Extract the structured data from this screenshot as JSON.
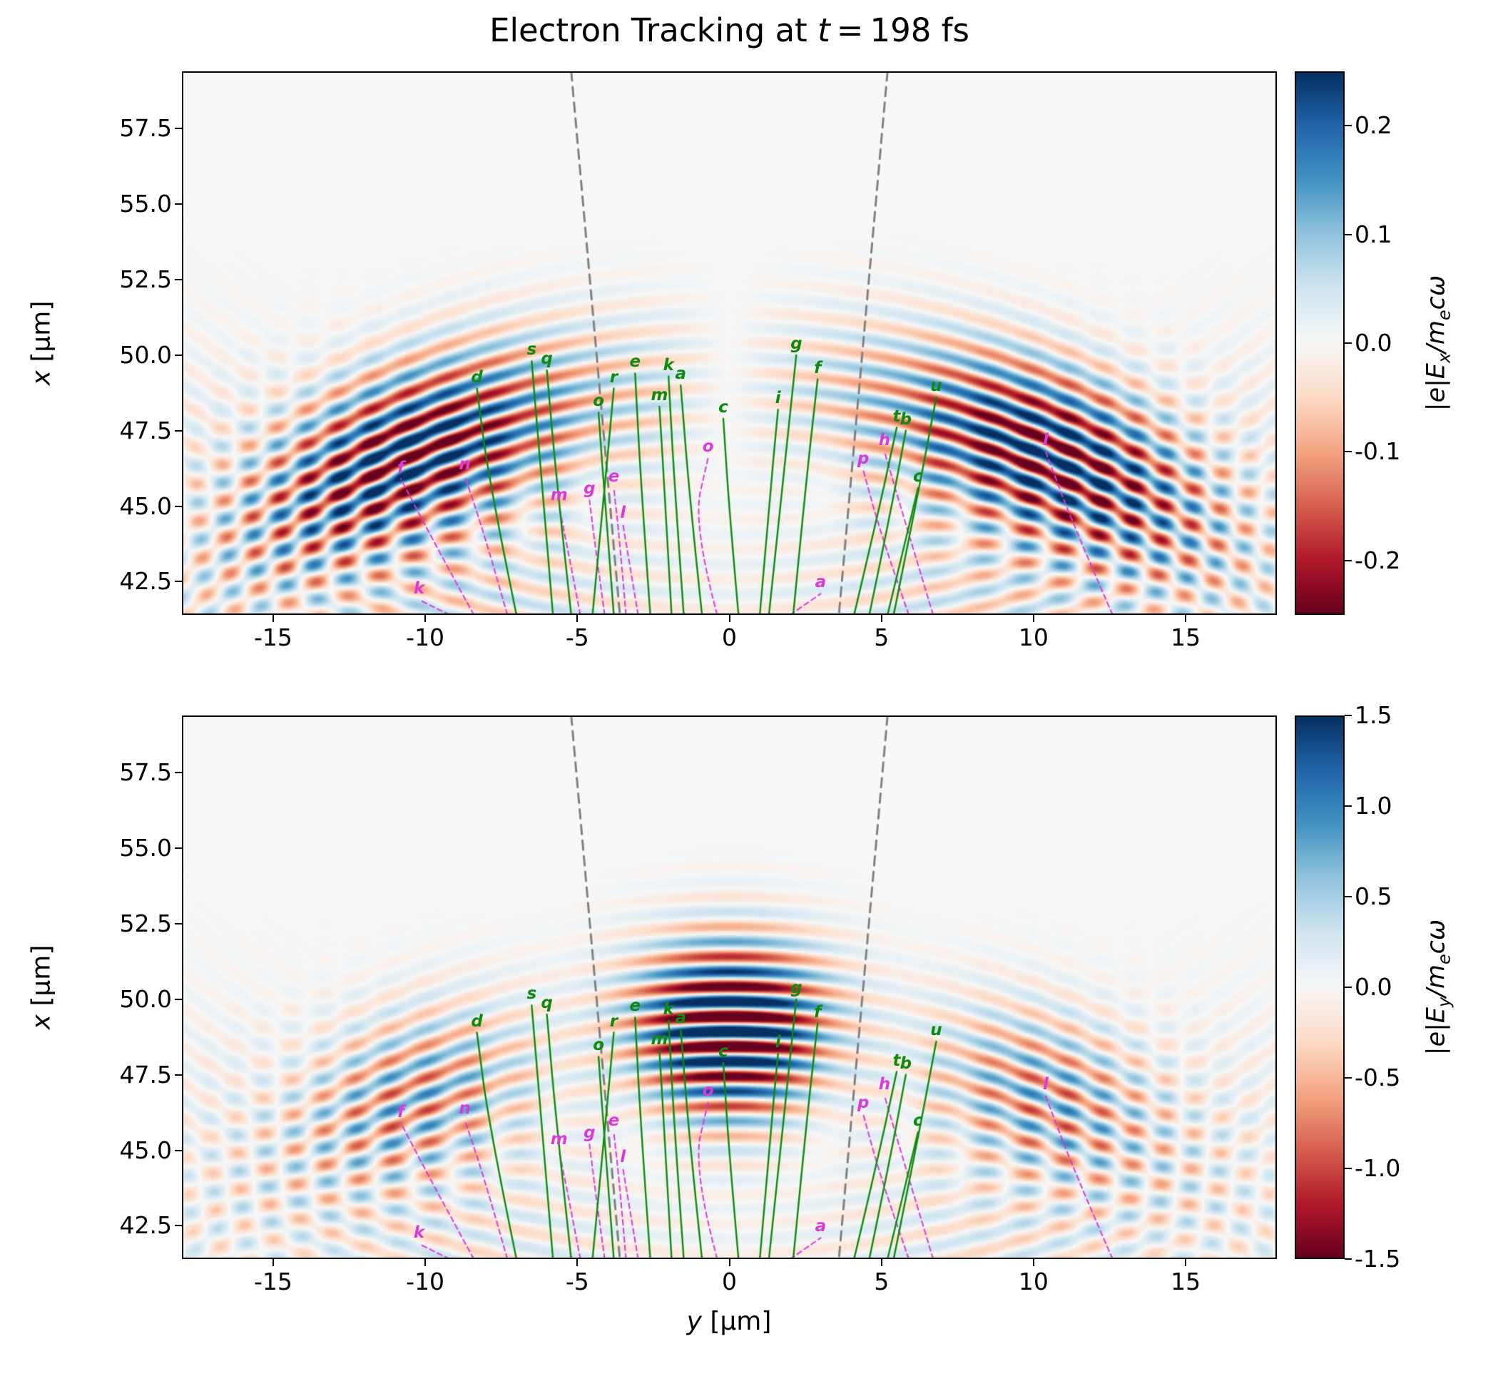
{
  "title": {
    "pre": "Electron Tracking at ",
    "var": "t",
    "post": " = 198 fs",
    "full": "Electron Tracking at t = 198 fs"
  },
  "axes": {
    "y_min": -18,
    "y_max": 18,
    "x_min": 41.4,
    "x_max": 59.4,
    "ylabel_var": "x",
    "ylabel_unit": " [μm]",
    "xlabel_var": "y",
    "xlabel_unit": " [μm]",
    "grid": false
  },
  "colors": {
    "green": "#0e8a0e",
    "magenta": "#d93ad9",
    "cone": "#808080",
    "axis": "#000000",
    "background": "#ffffff"
  },
  "colormap_stops": [
    "#67001f",
    "#b2182b",
    "#d6604d",
    "#f4a582",
    "#fddbc7",
    "#f7f7f7",
    "#d1e5f0",
    "#92c5de",
    "#4393c3",
    "#2166ac",
    "#053061"
  ],
  "chart_data": [
    {
      "type": "heatmap",
      "name": "Ex-field-panel",
      "title": "Electron Tracking at t = 198 fs",
      "xlabel": "y [μm]",
      "ylabel": "x [μm]",
      "x_range": [
        -18,
        18
      ],
      "y_range": [
        41.4,
        59.4
      ],
      "x_ticks": {
        "values": [
          -15,
          -10,
          -5,
          0,
          5,
          10,
          15
        ],
        "labels": [
          "-15",
          "-10",
          "-5",
          "0",
          "5",
          "10",
          "15"
        ]
      },
      "y_ticks": {
        "values": [
          57.5,
          55.0,
          52.5,
          50.0,
          47.5,
          45.0,
          42.5
        ],
        "labels": [
          "57.5",
          "55.0",
          "52.5",
          "50.0",
          "47.5",
          "45.0",
          "42.5"
        ]
      },
      "colorbar": {
        "label": "|e|Ex/mecω",
        "label_parts": {
          "pre": "|e|E",
          "sub": "x",
          "mid": "/m",
          "sub2": "e",
          "post": "cω"
        },
        "vmin": -0.25,
        "vmax": 0.25,
        "ticks": {
          "values": [
            0.2,
            0.1,
            0.0,
            -0.1,
            -0.2
          ],
          "labels": [
            "0.2",
            "0.1",
            "0.0",
            "-0.1",
            "-0.2"
          ]
        }
      },
      "field": {
        "mode": "odd",
        "vmax": 0.25,
        "amp": 0.3,
        "focus_x": 24,
        "r0": 25,
        "sigma_r": 2.8,
        "k": 6.3,
        "null_width": 0.12,
        "lobe_theta": 0.42,
        "lobe_width": 0.22,
        "center_amp": 0.3,
        "center_width": 0.18,
        "wing_amp": 0.12,
        "wing_theta": 0.78,
        "wing_width": 0.25,
        "mirror_x": 73,
        "mirror_amp": 0.08,
        "mirror_theta": 0.35,
        "mirror_theta_width": 0.3,
        "mirror_r0": 32,
        "mirror_sigma_r": 4.5
      },
      "overlays": [
        "trajectories",
        "cone_lines"
      ]
    },
    {
      "type": "heatmap",
      "name": "Ey-field-panel",
      "title": "",
      "xlabel": "y [μm]",
      "ylabel": "x [μm]",
      "x_range": [
        -18,
        18
      ],
      "y_range": [
        41.4,
        59.4
      ],
      "x_ticks": {
        "values": [
          -15,
          -10,
          -5,
          0,
          5,
          10,
          15
        ],
        "labels": [
          "-15",
          "-10",
          "-5",
          "0",
          "5",
          "10",
          "15"
        ]
      },
      "y_ticks": {
        "values": [
          57.5,
          55.0,
          52.5,
          50.0,
          47.5,
          45.0,
          42.5
        ],
        "labels": [
          "57.5",
          "55.0",
          "52.5",
          "50.0",
          "47.5",
          "45.0",
          "42.5"
        ]
      },
      "colorbar": {
        "label": "|e|Ey/mecω",
        "label_parts": {
          "pre": "|e|E",
          "sub": "y",
          "mid": "/m",
          "sub2": "e",
          "post": "cω"
        },
        "vmin": -1.5,
        "vmax": 1.5,
        "ticks": {
          "values": [
            1.5,
            1.0,
            0.5,
            0.0,
            -0.5,
            -1.0,
            -1.5
          ],
          "labels": [
            "1.5",
            "1.0",
            "0.5",
            "0.0",
            "-0.5",
            "-1.0",
            "-1.5"
          ]
        }
      },
      "field": {
        "mode": "even",
        "vmax": 1.5,
        "focus_x": 24,
        "r0": 25,
        "sigma_r": 2.8,
        "k": 6.3,
        "center_amp": 2.4,
        "center_width": 0.12,
        "lobe_amp": 0.9,
        "lobe_theta": 0.42,
        "lobe_width": 0.16,
        "wing_amp": 0.22,
        "wing_theta": 0.75,
        "wing_width": 0.22,
        "mirror_x": 73,
        "mirror_amp": 0.35,
        "mirror_theta": 0.35,
        "mirror_theta_width": 0.3,
        "mirror_r0": 32,
        "mirror_sigma_r": 4.5
      },
      "overlays": [
        "trajectories",
        "cone_lines"
      ]
    }
  ],
  "cone_lines": [
    [
      [
        -5.2,
        59.4
      ],
      [
        -3.6,
        41.4
      ]
    ],
    [
      [
        5.2,
        59.4
      ],
      [
        3.6,
        41.4
      ]
    ]
  ],
  "trajectories": {
    "green": [
      {
        "label": "d",
        "points": [
          [
            -7.0,
            41.4
          ],
          [
            -7.9,
            45.8
          ],
          [
            -8.3,
            48.9
          ]
        ]
      },
      {
        "label": "s",
        "points": [
          [
            -5.8,
            41.4
          ],
          [
            -6.2,
            46.2
          ],
          [
            -6.5,
            49.8
          ]
        ]
      },
      {
        "label": "q",
        "points": [
          [
            -5.2,
            41.4
          ],
          [
            -5.7,
            46.0
          ],
          [
            -6.0,
            49.5
          ]
        ]
      },
      {
        "label": "r",
        "points": [
          [
            -4.5,
            41.4
          ],
          [
            -4.1,
            45.6
          ],
          [
            -3.8,
            48.9
          ]
        ]
      },
      {
        "label": "e",
        "points": [
          [
            -2.6,
            41.4
          ],
          [
            -2.9,
            45.6
          ],
          [
            -3.1,
            49.4
          ]
        ]
      },
      {
        "label": "k",
        "points": [
          [
            -1.5,
            41.4
          ],
          [
            -1.8,
            45.6
          ],
          [
            -2.0,
            49.3
          ]
        ]
      },
      {
        "label": "a",
        "points": [
          [
            -0.9,
            41.4
          ],
          [
            -1.3,
            45.2
          ],
          [
            -1.6,
            49.0
          ]
        ]
      },
      {
        "label": "m",
        "points": [
          [
            -1.9,
            41.4
          ],
          [
            -2.1,
            45.0
          ],
          [
            -2.3,
            48.3
          ]
        ]
      },
      {
        "label": "o",
        "points": [
          [
            -3.8,
            41.4
          ],
          [
            -4.1,
            45.2
          ],
          [
            -4.3,
            48.1
          ]
        ]
      },
      {
        "label": "c",
        "points": [
          [
            0.3,
            41.4
          ],
          [
            0.0,
            44.8
          ],
          [
            -0.2,
            47.9
          ]
        ]
      },
      {
        "label": "g",
        "points": [
          [
            1.3,
            41.4
          ],
          [
            1.8,
            46.2
          ],
          [
            2.2,
            50.0
          ]
        ]
      },
      {
        "label": "i",
        "points": [
          [
            1.0,
            41.4
          ],
          [
            1.3,
            45.0
          ],
          [
            1.6,
            48.2
          ]
        ]
      },
      {
        "label": "f",
        "points": [
          [
            2.1,
            41.4
          ],
          [
            2.5,
            45.6
          ],
          [
            2.9,
            49.2
          ]
        ]
      },
      {
        "label": "t",
        "points": [
          [
            4.1,
            41.4
          ],
          [
            4.9,
            44.8
          ],
          [
            5.5,
            47.6
          ]
        ]
      },
      {
        "label": "b",
        "points": [
          [
            4.6,
            41.4
          ],
          [
            5.3,
            44.8
          ],
          [
            5.8,
            47.5
          ]
        ]
      },
      {
        "label": "u",
        "points": [
          [
            5.4,
            41.4
          ],
          [
            6.2,
            45.4
          ],
          [
            6.8,
            48.6
          ]
        ]
      },
      {
        "label": "c",
        "points": [
          [
            5.2,
            41.4
          ],
          [
            5.8,
            43.9
          ],
          [
            6.2,
            45.6
          ]
        ]
      }
    ],
    "magenta": [
      {
        "label": "f",
        "points": [
          [
            -8.4,
            41.4
          ],
          [
            -9.6,
            43.6
          ],
          [
            -10.8,
            45.9
          ]
        ]
      },
      {
        "label": "n",
        "points": [
          [
            -7.3,
            41.4
          ],
          [
            -8.0,
            43.9
          ],
          [
            -8.7,
            46.0
          ]
        ]
      },
      {
        "label": "k",
        "points": [
          [
            -9.2,
            41.4
          ],
          [
            -10.2,
            41.9
          ]
        ]
      },
      {
        "label": "m",
        "points": [
          [
            -4.9,
            41.4
          ],
          [
            -5.3,
            43.5
          ],
          [
            -5.6,
            45.0
          ]
        ]
      },
      {
        "label": "g",
        "points": [
          [
            -4.1,
            41.4
          ],
          [
            -4.4,
            43.6
          ],
          [
            -4.6,
            45.2
          ]
        ]
      },
      {
        "label": "e",
        "points": [
          [
            -3.4,
            41.4
          ],
          [
            -3.6,
            43.8
          ],
          [
            -3.8,
            45.6
          ]
        ]
      },
      {
        "label": "l",
        "points": [
          [
            -3.0,
            41.4
          ],
          [
            -3.3,
            43.2
          ],
          [
            -3.5,
            44.4
          ]
        ]
      },
      {
        "label": "o",
        "points": [
          [
            -0.4,
            41.4
          ],
          [
            -1.2,
            44.4
          ],
          [
            -0.7,
            46.6
          ]
        ]
      },
      {
        "label": "a",
        "points": [
          [
            2.0,
            41.4
          ],
          [
            3.0,
            42.1
          ]
        ]
      },
      {
        "label": "p",
        "points": [
          [
            5.9,
            41.4
          ],
          [
            5.0,
            44.0
          ],
          [
            4.4,
            46.2
          ]
        ]
      },
      {
        "label": "h",
        "points": [
          [
            6.7,
            41.4
          ],
          [
            5.8,
            44.4
          ],
          [
            5.1,
            46.8
          ]
        ]
      },
      {
        "label": "l",
        "points": [
          [
            12.6,
            41.4
          ],
          [
            11.3,
            44.4
          ],
          [
            10.4,
            46.8
          ]
        ]
      }
    ]
  }
}
